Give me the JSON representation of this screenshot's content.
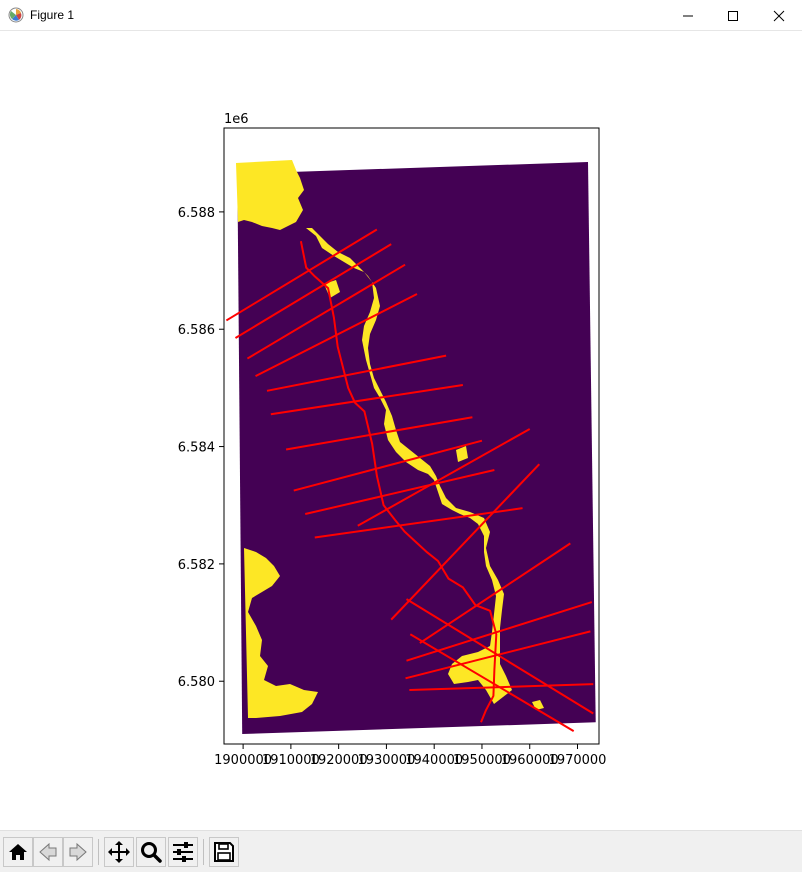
{
  "window": {
    "title": "Figure 1",
    "minimize_icon": "minimize-icon",
    "maximize_icon": "maximize-icon",
    "close_icon": "close-icon"
  },
  "toolbar": {
    "buttons": [
      {
        "name": "home-button",
        "icon": "home-icon"
      },
      {
        "name": "back-button",
        "icon": "back-arrow-icon"
      },
      {
        "name": "forward-button",
        "icon": "forward-arrow-icon"
      },
      {
        "name": "pan-button",
        "icon": "move-icon"
      },
      {
        "name": "zoom-button",
        "icon": "magnifier-icon"
      },
      {
        "name": "configure-subplots-button",
        "icon": "sliders-icon"
      },
      {
        "name": "save-button",
        "icon": "floppy-disk-icon"
      }
    ]
  },
  "chart_data": {
    "type": "scatter",
    "description_colors": {
      "background_class": "#440154",
      "river_class": "#fde725",
      "lines": "#ff0000"
    },
    "y_offset_label": "1e6",
    "xlim": [
      1896000,
      1974500
    ],
    "ylim": [
      6578930,
      6589430
    ],
    "x_ticks": [
      1900000,
      1910000,
      1920000,
      1930000,
      1940000,
      1950000,
      1960000,
      1970000
    ],
    "x_tick_labels": [
      "1900000",
      "1910000",
      "1920000",
      "1930000",
      "1940000",
      "1950000",
      "1960000",
      "1970000"
    ],
    "y_ticks": [
      6580000,
      6582000,
      6584000,
      6586000,
      6588000
    ],
    "y_tick_labels": [
      "6.580",
      "6.582",
      "6.584",
      "6.586",
      "6.588"
    ],
    "raster_extent_corners": [
      [
        1898800,
        6588650
      ],
      [
        1972200,
        6588850
      ],
      [
        1973800,
        6579300
      ],
      [
        1899800,
        6579100
      ]
    ],
    "centerline": [
      [
        1912100,
        6587500
      ],
      [
        1913200,
        6587050
      ],
      [
        1915000,
        6586900
      ],
      [
        1917800,
        6586700
      ],
      [
        1919000,
        6586200
      ],
      [
        1919800,
        6585700
      ],
      [
        1922000,
        6585000
      ],
      [
        1923400,
        6584750
      ],
      [
        1925400,
        6584600
      ],
      [
        1927000,
        6584050
      ],
      [
        1928000,
        6583500
      ],
      [
        1929400,
        6583000
      ],
      [
        1931800,
        6582750
      ],
      [
        1933800,
        6582550
      ],
      [
        1935800,
        6582400
      ],
      [
        1938500,
        6582200
      ],
      [
        1940800,
        6582050
      ],
      [
        1943000,
        6581750
      ],
      [
        1946000,
        6581600
      ],
      [
        1948600,
        6581300
      ],
      [
        1951700,
        6581200
      ],
      [
        1953000,
        6580800
      ],
      [
        1952600,
        6580200
      ],
      [
        1952400,
        6579750
      ],
      [
        1950800,
        6579500
      ],
      [
        1949800,
        6579300
      ]
    ],
    "cross_sections": [
      [
        [
          1896500,
          6586150
        ],
        [
          1928000,
          6587700
        ]
      ],
      [
        [
          1898400,
          6585850
        ],
        [
          1931000,
          6587450
        ]
      ],
      [
        [
          1900900,
          6585500
        ],
        [
          1933900,
          6587100
        ]
      ],
      [
        [
          1902600,
          6585200
        ],
        [
          1936400,
          6586600
        ]
      ],
      [
        [
          1905000,
          6584950
        ],
        [
          1942500,
          6585550
        ]
      ],
      [
        [
          1905800,
          6584550
        ],
        [
          1946000,
          6585050
        ]
      ],
      [
        [
          1909000,
          6583950
        ],
        [
          1948000,
          6584500
        ]
      ],
      [
        [
          1910600,
          6583250
        ],
        [
          1950000,
          6584100
        ]
      ],
      [
        [
          1913000,
          6582850
        ],
        [
          1952600,
          6583600
        ]
      ],
      [
        [
          1915000,
          6582450
        ],
        [
          1958500,
          6582950
        ]
      ],
      [
        [
          1924000,
          6582650
        ],
        [
          1960000,
          6584300
        ]
      ],
      [
        [
          1931000,
          6581050
        ],
        [
          1962000,
          6583700
        ]
      ],
      [
        [
          1937000,
          6580650
        ],
        [
          1968500,
          6582350
        ]
      ],
      [
        [
          1934200,
          6580350
        ],
        [
          1973000,
          6581350
        ]
      ],
      [
        [
          1934000,
          6580050
        ],
        [
          1972700,
          6580850
        ]
      ],
      [
        [
          1934800,
          6579850
        ],
        [
          1973300,
          6579950
        ]
      ],
      [
        [
          1935000,
          6580800
        ],
        [
          1969200,
          6579150
        ]
      ],
      [
        [
          1934200,
          6581400
        ],
        [
          1973300,
          6579450
        ]
      ]
    ]
  }
}
